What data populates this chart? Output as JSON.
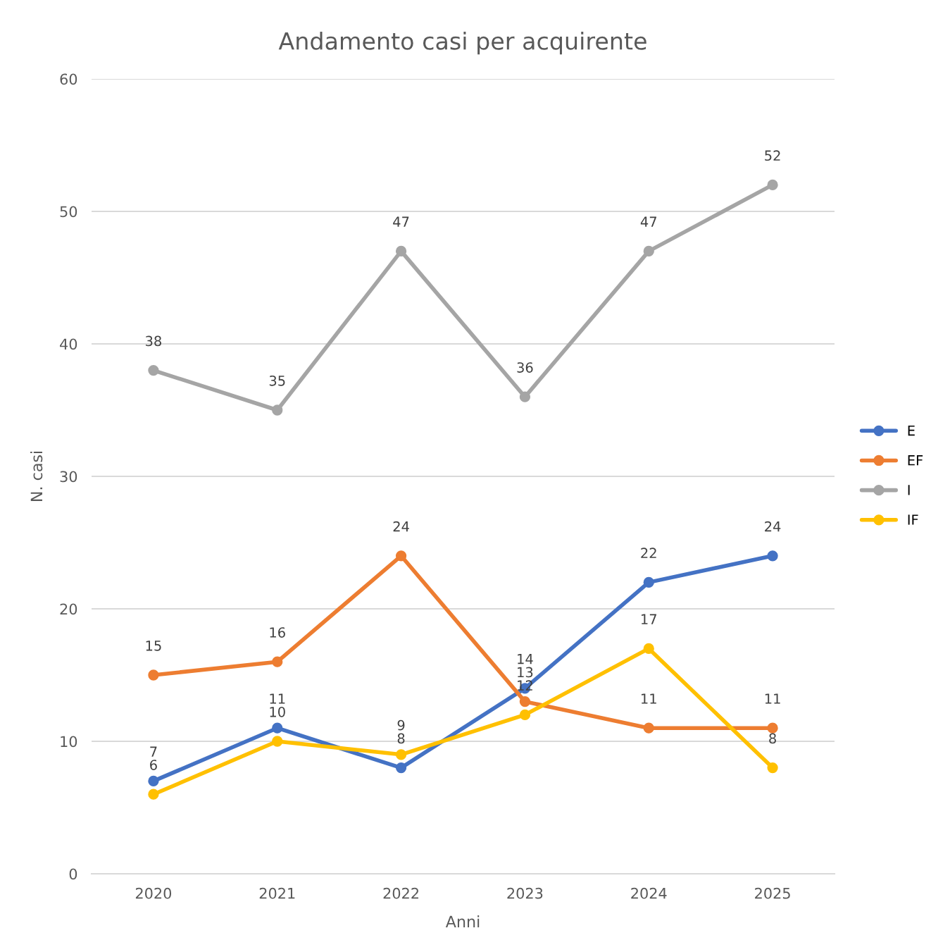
{
  "chart_data": {
    "type": "line",
    "title": "Andamento casi per acquirente",
    "xlabel": "Anni",
    "ylabel": "N. casi",
    "categories": [
      "2020",
      "2021",
      "2022",
      "2023",
      "2024",
      "2025"
    ],
    "series": [
      {
        "name": "E",
        "color": "#4472c4",
        "values": [
          7,
          11,
          8,
          14,
          22,
          24
        ]
      },
      {
        "name": "EF",
        "color": "#ed7d31",
        "values": [
          15,
          16,
          24,
          13,
          11,
          11
        ]
      },
      {
        "name": "I",
        "color": "#a5a5a5",
        "values": [
          38,
          35,
          47,
          36,
          47,
          52
        ]
      },
      {
        "name": "IF",
        "color": "#ffc000",
        "values": [
          6,
          10,
          9,
          12,
          17,
          8
        ]
      }
    ],
    "ylim": [
      0,
      60
    ],
    "yticks": [
      0,
      10,
      20,
      30,
      40,
      50,
      60
    ],
    "grid": "y",
    "legend": "right",
    "marker": "circle",
    "line_style": "solid",
    "data_labels": true
  }
}
